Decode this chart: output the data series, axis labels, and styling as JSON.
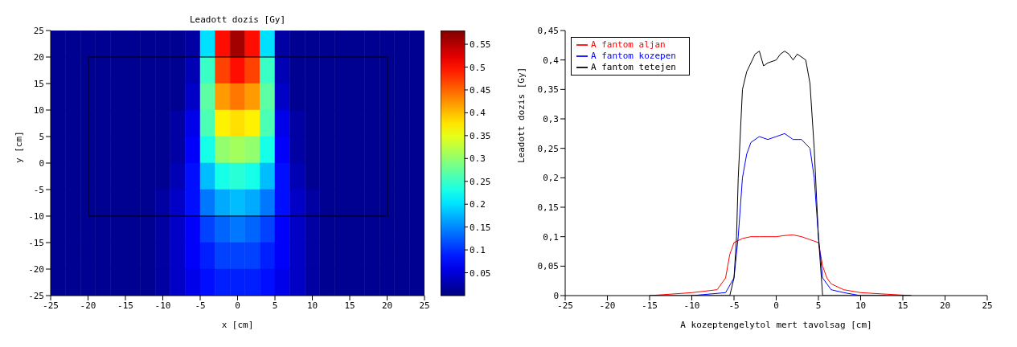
{
  "chart_data": [
    {
      "type": "heatmap",
      "title": "Leadott dozis [Gy]",
      "xlabel": "x [cm]",
      "ylabel": "y [cm]",
      "x": [
        -24,
        -22,
        -20,
        -18,
        -16,
        -14,
        -12,
        -10,
        -8,
        -6,
        -4,
        -2,
        0,
        2,
        4,
        6,
        8,
        10,
        12,
        14,
        16,
        18,
        20,
        22,
        24
      ],
      "y": [
        22.5,
        17.5,
        12.5,
        7.5,
        2.5,
        -2.5,
        -7.5,
        -12.5,
        -17.5,
        -22.5
      ],
      "cells": [
        [
          0.01,
          0.01,
          0.01,
          0.01,
          0.01,
          0.01,
          0.01,
          0.01,
          0.01,
          0.02,
          0.2,
          0.5,
          0.56,
          0.5,
          0.2,
          0.02,
          0.01,
          0.01,
          0.01,
          0.01,
          0.01,
          0.01,
          0.01,
          0.01,
          0.01
        ],
        [
          0.01,
          0.01,
          0.01,
          0.01,
          0.01,
          0.01,
          0.01,
          0.01,
          0.01,
          0.03,
          0.25,
          0.47,
          0.5,
          0.47,
          0.25,
          0.03,
          0.01,
          0.01,
          0.01,
          0.01,
          0.01,
          0.01,
          0.01,
          0.01,
          0.01
        ],
        [
          0.01,
          0.01,
          0.01,
          0.01,
          0.01,
          0.01,
          0.01,
          0.01,
          0.01,
          0.04,
          0.27,
          0.42,
          0.44,
          0.42,
          0.27,
          0.04,
          0.01,
          0.01,
          0.01,
          0.01,
          0.01,
          0.01,
          0.01,
          0.01,
          0.01
        ],
        [
          0.01,
          0.01,
          0.01,
          0.01,
          0.01,
          0.01,
          0.01,
          0.01,
          0.02,
          0.06,
          0.26,
          0.37,
          0.38,
          0.37,
          0.26,
          0.06,
          0.02,
          0.01,
          0.01,
          0.01,
          0.01,
          0.01,
          0.01,
          0.01,
          0.01
        ],
        [
          0.01,
          0.01,
          0.01,
          0.01,
          0.01,
          0.01,
          0.01,
          0.01,
          0.02,
          0.07,
          0.23,
          0.3,
          0.31,
          0.3,
          0.23,
          0.07,
          0.02,
          0.01,
          0.01,
          0.01,
          0.01,
          0.01,
          0.01,
          0.01,
          0.01
        ],
        [
          0.01,
          0.01,
          0.01,
          0.01,
          0.01,
          0.01,
          0.01,
          0.01,
          0.03,
          0.08,
          0.18,
          0.23,
          0.24,
          0.23,
          0.18,
          0.08,
          0.03,
          0.01,
          0.01,
          0.01,
          0.01,
          0.01,
          0.01,
          0.01,
          0.01
        ],
        [
          0.01,
          0.01,
          0.01,
          0.01,
          0.01,
          0.01,
          0.01,
          0.02,
          0.04,
          0.08,
          0.14,
          0.17,
          0.18,
          0.17,
          0.14,
          0.08,
          0.04,
          0.02,
          0.01,
          0.01,
          0.01,
          0.01,
          0.01,
          0.01,
          0.01
        ],
        [
          0.01,
          0.01,
          0.01,
          0.01,
          0.01,
          0.01,
          0.01,
          0.02,
          0.04,
          0.07,
          0.11,
          0.13,
          0.14,
          0.13,
          0.11,
          0.07,
          0.04,
          0.02,
          0.01,
          0.01,
          0.01,
          0.01,
          0.01,
          0.01,
          0.01
        ],
        [
          0.01,
          0.01,
          0.01,
          0.01,
          0.01,
          0.01,
          0.01,
          0.02,
          0.04,
          0.07,
          0.09,
          0.11,
          0.11,
          0.11,
          0.09,
          0.07,
          0.04,
          0.02,
          0.01,
          0.01,
          0.01,
          0.01,
          0.01,
          0.01,
          0.01
        ],
        [
          0.01,
          0.01,
          0.01,
          0.01,
          0.01,
          0.01,
          0.01,
          0.02,
          0.04,
          0.06,
          0.08,
          0.09,
          0.09,
          0.09,
          0.08,
          0.06,
          0.04,
          0.02,
          0.01,
          0.01,
          0.01,
          0.01,
          0.01,
          0.01,
          0.01
        ]
      ],
      "clim": [
        0,
        0.58
      ],
      "cticks": [
        0.05,
        0.1,
        0.15,
        0.2,
        0.25,
        0.3,
        0.35,
        0.4,
        0.45,
        0.5,
        0.55
      ],
      "xlim": [
        -25,
        25
      ],
      "xticks": [
        -25,
        -20,
        -15,
        -10,
        -5,
        0,
        5,
        10,
        15,
        20,
        25
      ],
      "ylim": [
        -25,
        25
      ],
      "yticks": [
        -25,
        -20,
        -15,
        -10,
        -5,
        0,
        5,
        10,
        15,
        20,
        25
      ]
    },
    {
      "type": "line",
      "xlabel": "A kozeptengelytol mert tavolsag [cm]",
      "ylabel": "Leadott dozis [Gy]",
      "xlim": [
        -25,
        25
      ],
      "xticks": [
        -25,
        -20,
        -15,
        -10,
        -5,
        0,
        5,
        10,
        15,
        20,
        25
      ],
      "ylim": [
        0,
        0.45
      ],
      "yticks": [
        0,
        {
          "value": 0.05,
          "label": "0,05"
        },
        {
          "value": 0.1,
          "label": "0,1"
        },
        {
          "value": 0.15,
          "label": "0,15"
        },
        {
          "value": 0.2,
          "label": "0,2"
        },
        {
          "value": 0.25,
          "label": "0,25"
        },
        {
          "value": 0.3,
          "label": "0,3"
        },
        {
          "value": 0.35,
          "label": "0,35"
        },
        {
          "value": 0.4,
          "label": "0,4"
        },
        {
          "value": 0.45,
          "label": "0,45"
        }
      ],
      "legend": "top left",
      "series": [
        {
          "name": "A fantom aljan",
          "color": "#ff0000",
          "x": [
            -15,
            -10,
            -7,
            -6,
            -5.5,
            -5,
            -4,
            -3,
            -2,
            -1,
            0,
            1,
            2,
            3,
            4,
            5,
            5.5,
            6,
            6.5,
            8,
            10,
            16
          ],
          "values": [
            0,
            0.005,
            0.01,
            0.03,
            0.07,
            0.09,
            0.097,
            0.1,
            0.1,
            0.1,
            0.1,
            0.102,
            0.103,
            0.1,
            0.095,
            0.09,
            0.05,
            0.03,
            0.02,
            0.01,
            0.005,
            0
          ]
        },
        {
          "name": "A fantom kozepen",
          "color": "#0000ff",
          "x": [
            -10,
            -6,
            -5,
            -4.5,
            -4,
            -3.5,
            -3,
            -2,
            -1,
            0,
            1,
            2,
            3,
            4,
            4.5,
            5,
            5.5,
            6.5,
            8,
            10,
            13
          ],
          "values": [
            0,
            0.005,
            0.03,
            0.1,
            0.2,
            0.24,
            0.26,
            0.27,
            0.265,
            0.27,
            0.275,
            0.265,
            0.265,
            0.25,
            0.2,
            0.1,
            0.03,
            0.01,
            0.005,
            0,
            0
          ]
        },
        {
          "name": "A fantom tetejen",
          "color": "#000000",
          "x": [
            -15,
            -5.5,
            -5,
            -4.7,
            -4.5,
            -4,
            -3.5,
            -2.5,
            -2,
            -1.5,
            -1,
            0,
            0.5,
            1,
            1.5,
            2,
            2.5,
            3,
            3.5,
            4,
            4.5,
            5,
            5.5,
            16
          ],
          "values": [
            0,
            0,
            0.03,
            0.1,
            0.2,
            0.35,
            0.38,
            0.41,
            0.415,
            0.39,
            0.395,
            0.4,
            0.41,
            0.415,
            0.41,
            0.4,
            0.41,
            0.405,
            0.4,
            0.36,
            0.25,
            0.1,
            0,
            0
          ]
        }
      ]
    }
  ]
}
